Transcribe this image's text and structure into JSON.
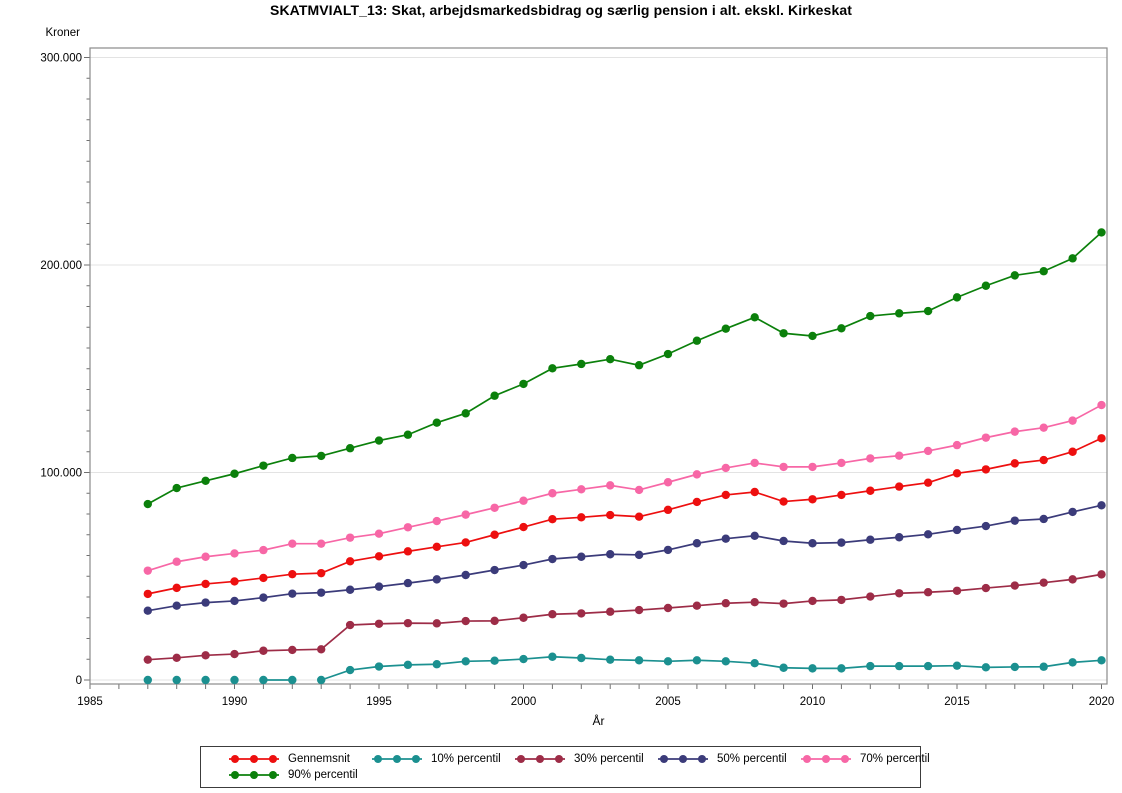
{
  "page": {
    "background": "#ffffff",
    "frame_color": "#8a8a8a",
    "grid_color": "#e3e3e3",
    "tick_color": "#6f6f6f",
    "text_color": "#000000"
  },
  "chart_data": {
    "type": "line",
    "title": "SKATMVIALT_13: Skat, arbejdsmarkedsbidrag og særlig pension i alt. ekskl. Kirkeskat",
    "xlabel": "År",
    "ylabel": "Kroner",
    "xlim": [
      1985,
      2020.2
    ],
    "ylim": [
      0,
      300000
    ],
    "grid": "horizontal-major-only",
    "legend_position": "bottom",
    "x_labeled_ticks": [
      1985,
      1990,
      1995,
      2000,
      2005,
      2010,
      2015,
      2020
    ],
    "x_minor_tick_step_years": 1,
    "y_major_ticks": [
      {
        "value": 0,
        "label": "0"
      },
      {
        "value": 100000,
        "label": "100.000"
      },
      {
        "value": 200000,
        "label": "200.000"
      },
      {
        "value": 300000,
        "label": "300.000"
      }
    ],
    "y_minor_tick_step": 10000,
    "years": [
      1987,
      1988,
      1989,
      1990,
      1991,
      1992,
      1993,
      1994,
      1995,
      1996,
      1997,
      1998,
      1999,
      2000,
      2001,
      2002,
      2003,
      2004,
      2005,
      2006,
      2007,
      2008,
      2009,
      2010,
      2011,
      2012,
      2013,
      2014,
      2015,
      2016,
      2017,
      2018,
      2019,
      2020
    ],
    "series": [
      {
        "name": "Gennemsnit",
        "color": "#ed0f0f",
        "values": [
          41500,
          44400,
          46300,
          47500,
          49200,
          51000,
          51500,
          57200,
          59600,
          62000,
          64200,
          66300,
          70000,
          73700,
          77500,
          78400,
          79500,
          78700,
          82000,
          85800,
          89200,
          90600,
          86000,
          87100,
          89200,
          91200,
          93200,
          95100,
          99600,
          101500,
          104400,
          106000,
          110000,
          116500
        ]
      },
      {
        "name": "10% percentil",
        "color": "#1b9090",
        "values": [
          0,
          0,
          0,
          0,
          0,
          0,
          0,
          4800,
          6500,
          7300,
          7600,
          9000,
          9300,
          10100,
          11200,
          10600,
          9800,
          9500,
          9000,
          9500,
          9000,
          8100,
          5900,
          5600,
          5600,
          6700,
          6700,
          6700,
          6900,
          6100,
          6300,
          6400,
          8500,
          9500
        ],
        "line_gaps_after": [
          1987,
          1988,
          1989,
          1990,
          1992
        ]
      },
      {
        "name": "30% percentil",
        "color": "#9d2c47",
        "values": [
          9800,
          10700,
          11900,
          12500,
          14100,
          14500,
          14800,
          26500,
          27100,
          27400,
          27300,
          28400,
          28500,
          30000,
          31700,
          32100,
          32900,
          33700,
          34700,
          35800,
          37000,
          37500,
          36800,
          38100,
          38600,
          40200,
          41800,
          42300,
          43000,
          44300,
          45500,
          46900,
          48500,
          50900
        ]
      },
      {
        "name": "50% percentil",
        "color": "#3b3b7a",
        "values": [
          33400,
          35800,
          37300,
          38100,
          39700,
          41600,
          42100,
          43500,
          45000,
          46700,
          48500,
          50600,
          53000,
          55400,
          58300,
          59400,
          60600,
          60300,
          62700,
          65900,
          68100,
          69500,
          67000,
          65900,
          66200,
          67600,
          68800,
          70200,
          72300,
          74200,
          76800,
          77600,
          81000,
          84200
        ]
      },
      {
        "name": "70% percentil",
        "color": "#f767a6",
        "values": [
          52700,
          57000,
          59400,
          61000,
          62600,
          65700,
          65700,
          68600,
          70500,
          73600,
          76600,
          79700,
          83000,
          86400,
          90000,
          91900,
          93800,
          91600,
          95300,
          99100,
          102200,
          104600,
          102700,
          102700,
          104600,
          106800,
          108100,
          110400,
          113200,
          116800,
          119700,
          121600,
          125000,
          132500
        ]
      },
      {
        "name": "90% percentil",
        "color": "#0b800b",
        "values": [
          84800,
          92500,
          96000,
          99400,
          103300,
          107000,
          108000,
          111700,
          115400,
          118200,
          124000,
          128500,
          137000,
          142700,
          150200,
          152300,
          154600,
          151700,
          157100,
          163500,
          169300,
          174800,
          167100,
          165800,
          169500,
          175400,
          176700,
          177800,
          184400,
          190000,
          195000,
          197000,
          203200,
          215700
        ]
      }
    ]
  }
}
